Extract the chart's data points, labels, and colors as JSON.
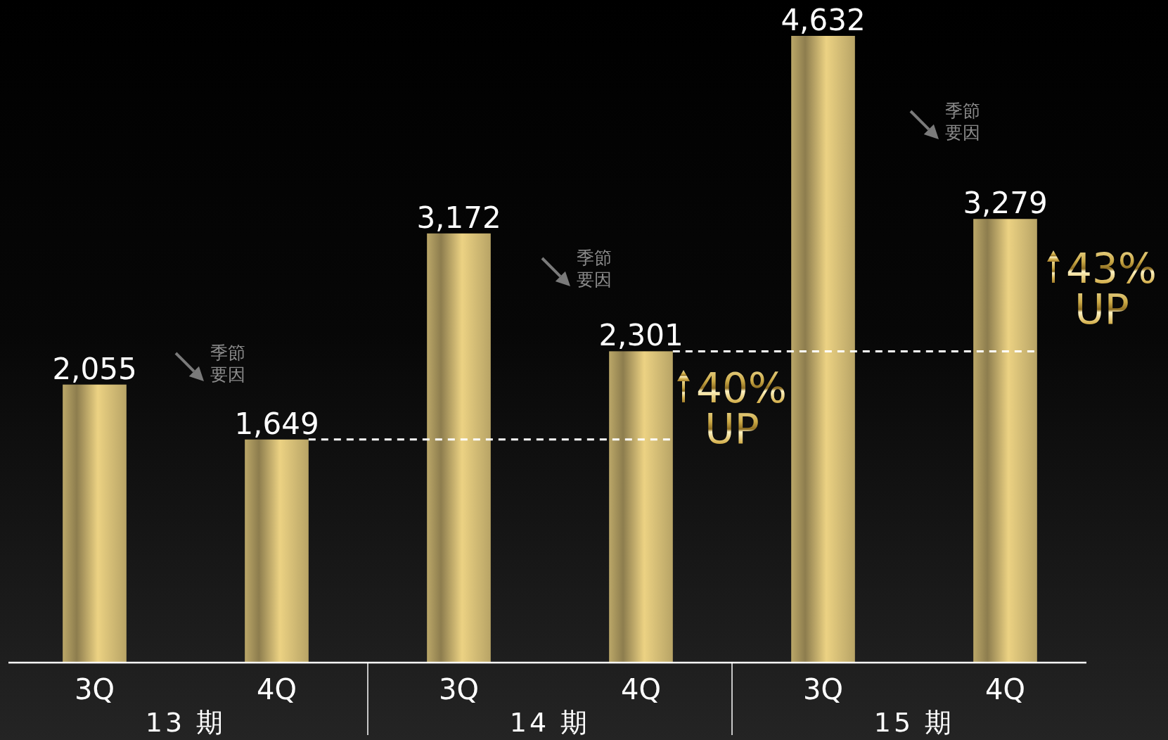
{
  "chart_data": {
    "type": "bar",
    "categories": [
      "3Q",
      "4Q",
      "3Q",
      "4Q",
      "3Q",
      "4Q"
    ],
    "values": [
      2055,
      1649,
      3172,
      2301,
      4632,
      3279
    ],
    "value_labels": [
      "2,055",
      "1,649",
      "3,172",
      "2,301",
      "4,632",
      "3,279"
    ],
    "color": "#c2ad6c",
    "annotations": [
      "13 期",
      "14 期",
      "15 期",
      "季節要因",
      "季節要因",
      "季節要因",
      "40% UP",
      "43% UP"
    ],
    "ref_lines": [
      {
        "axis": "y",
        "value": 1649,
        "color": "#ffffff",
        "line_style": "dashed"
      },
      {
        "axis": "y",
        "value": 2301,
        "color": "#ffffff",
        "line_style": "dashed"
      }
    ]
  }
}
